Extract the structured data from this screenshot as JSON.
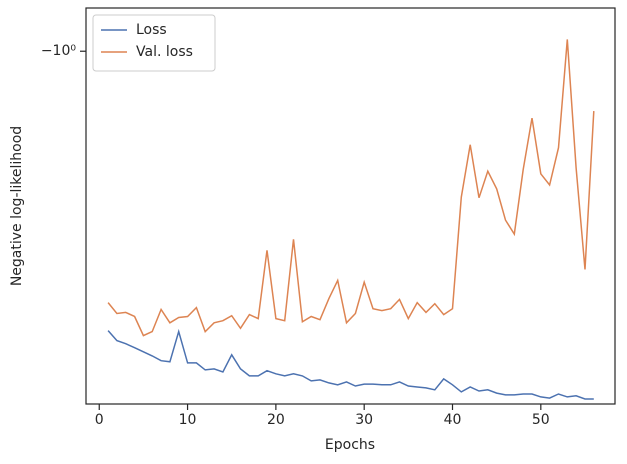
{
  "chart_data": {
    "type": "line",
    "xlabel": "Epochs",
    "ylabel": "Negative log-likelihood",
    "x": [
      1,
      2,
      3,
      4,
      5,
      6,
      7,
      8,
      9,
      10,
      11,
      12,
      13,
      14,
      15,
      16,
      17,
      18,
      19,
      20,
      21,
      22,
      23,
      24,
      25,
      26,
      27,
      28,
      29,
      30,
      31,
      32,
      33,
      34,
      35,
      36,
      37,
      38,
      39,
      40,
      41,
      42,
      43,
      44,
      45,
      46,
      47,
      48,
      49,
      50,
      51,
      52,
      53,
      54,
      55,
      56
    ],
    "series": [
      {
        "name": "Loss",
        "color": "#4c72b0",
        "values": [
          -5.14,
          -5.45,
          -5.55,
          -5.68,
          -5.82,
          -5.96,
          -6.13,
          -6.17,
          -5.17,
          -6.21,
          -6.21,
          -6.47,
          -6.43,
          -6.55,
          -5.92,
          -6.43,
          -6.7,
          -6.7,
          -6.5,
          -6.62,
          -6.7,
          -6.62,
          -6.7,
          -6.9,
          -6.86,
          -6.98,
          -7.06,
          -6.94,
          -7.11,
          -7.03,
          -7.03,
          -7.06,
          -7.06,
          -6.94,
          -7.11,
          -7.15,
          -7.19,
          -7.27,
          -6.82,
          -7.06,
          -7.36,
          -7.15,
          -7.32,
          -7.27,
          -7.41,
          -7.49,
          -7.49,
          -7.45,
          -7.45,
          -7.58,
          -7.63,
          -7.45,
          -7.58,
          -7.53,
          -7.67,
          -7.67
        ]
      },
      {
        "name": "Val. loss",
        "color": "#dd8452",
        "values": [
          -4.36,
          -4.65,
          -4.62,
          -4.73,
          -5.29,
          -5.17,
          -4.54,
          -4.91,
          -4.76,
          -4.73,
          -4.49,
          -5.17,
          -4.91,
          -4.85,
          -4.71,
          -5.07,
          -4.68,
          -4.79,
          -3.21,
          -4.79,
          -4.85,
          -3.01,
          -4.88,
          -4.73,
          -4.82,
          -4.26,
          -3.83,
          -4.91,
          -4.65,
          -3.87,
          -4.52,
          -4.57,
          -4.52,
          -4.28,
          -4.79,
          -4.36,
          -4.62,
          -4.39,
          -4.68,
          -4.52,
          -2.35,
          -1.73,
          -2.36,
          -2.02,
          -2.24,
          -2.69,
          -2.92,
          -2.0,
          -1.48,
          -2.05,
          -2.19,
          -1.76,
          -0.97,
          -1.98,
          -3.59,
          -1.42
        ]
      }
    ],
    "xlim": [
      -1.5,
      58.4
    ],
    "xticks": [
      0,
      10,
      20,
      30,
      40,
      50
    ],
    "ylim": [
      -7.9,
      -0.89
    ],
    "yticks": [
      {
        "value": -1,
        "label": "−10⁰"
      }
    ],
    "yscale": "symlog",
    "legend": "upper-left"
  }
}
